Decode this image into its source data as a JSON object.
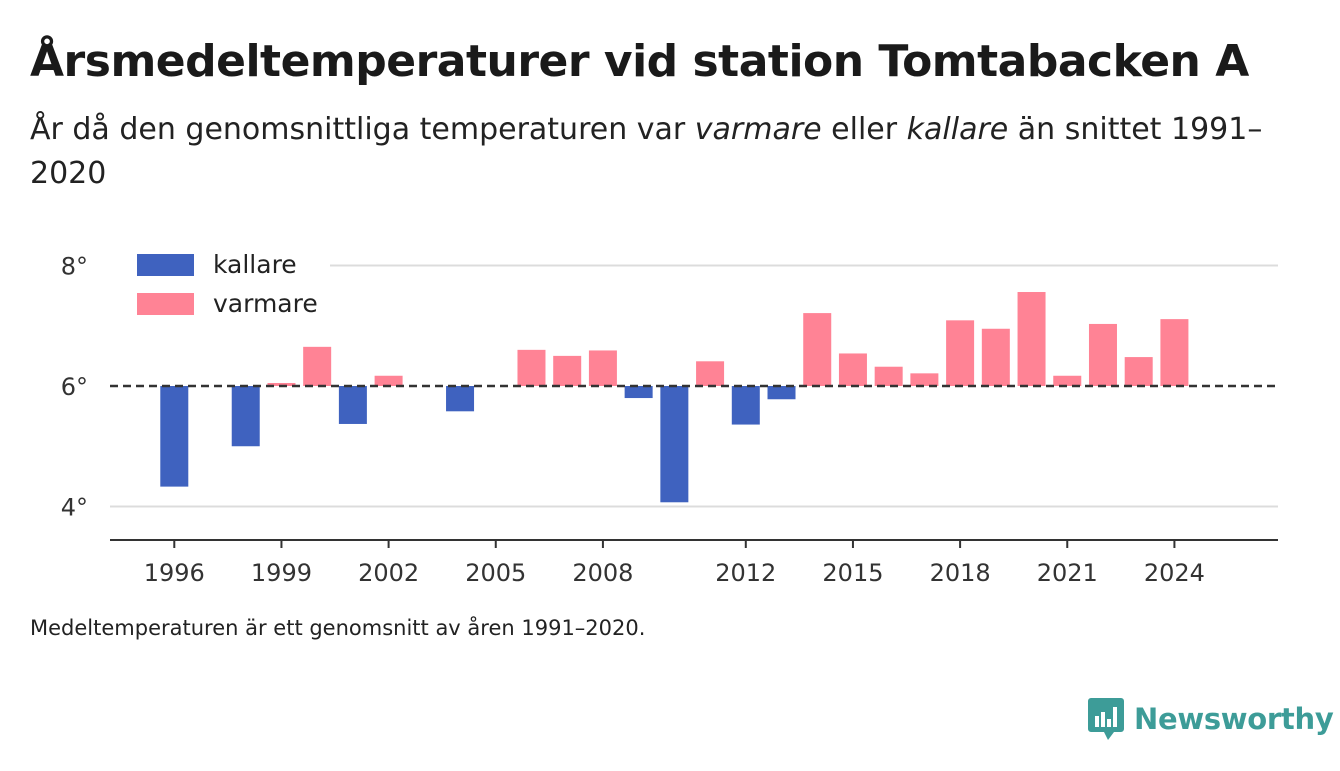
{
  "title": "Årsmedeltemperaturer vid station Tomtabacken A",
  "subtitle": {
    "part1": "År då den genomsnittliga temperaturen var ",
    "warm_word": "varmare",
    "part2": " eller ",
    "cold_word": "kallare",
    "part3": " än snittet 1991–2020"
  },
  "note": "Medeltemperaturen är ett genomsnitt av åren 1991–2020.",
  "brand": {
    "name": "Newsworthy",
    "icon": "bar-chart-speech-bubble-icon",
    "color": "#3d9c98"
  },
  "chart_data": {
    "type": "bar",
    "baseline": 6.0,
    "ylim": [
      3.5,
      8.2
    ],
    "yticks": [
      4,
      6,
      8
    ],
    "ytick_labels": [
      "4°",
      "6°",
      "8°"
    ],
    "xticks": [
      1996,
      1999,
      2002,
      2005,
      2008,
      2012,
      2015,
      2018,
      2021,
      2024
    ],
    "xlim": [
      1994.2,
      2026.9
    ],
    "grid": true,
    "baseline_style": "dashed",
    "legend": {
      "position": "top-left",
      "entries": [
        {
          "label": "kallare",
          "color": "#3f62bf"
        },
        {
          "label": "varmare",
          "color": "#ff8395"
        }
      ]
    },
    "colors": {
      "cold": "#3f62bf",
      "warm": "#ff8395"
    },
    "years": [
      1996,
      1998,
      1999,
      2000,
      2001,
      2002,
      2004,
      2006,
      2007,
      2008,
      2009,
      2010,
      2011,
      2012,
      2013,
      2014,
      2015,
      2016,
      2017,
      2018,
      2019,
      2020,
      2021,
      2022,
      2023,
      2024
    ],
    "values": [
      4.33,
      5.0,
      6.05,
      6.65,
      5.37,
      6.17,
      5.58,
      6.6,
      6.5,
      6.59,
      5.8,
      4.07,
      6.41,
      5.36,
      5.78,
      7.21,
      6.54,
      6.32,
      6.21,
      7.09,
      6.95,
      7.56,
      6.17,
      7.03,
      6.48,
      7.11
    ]
  }
}
